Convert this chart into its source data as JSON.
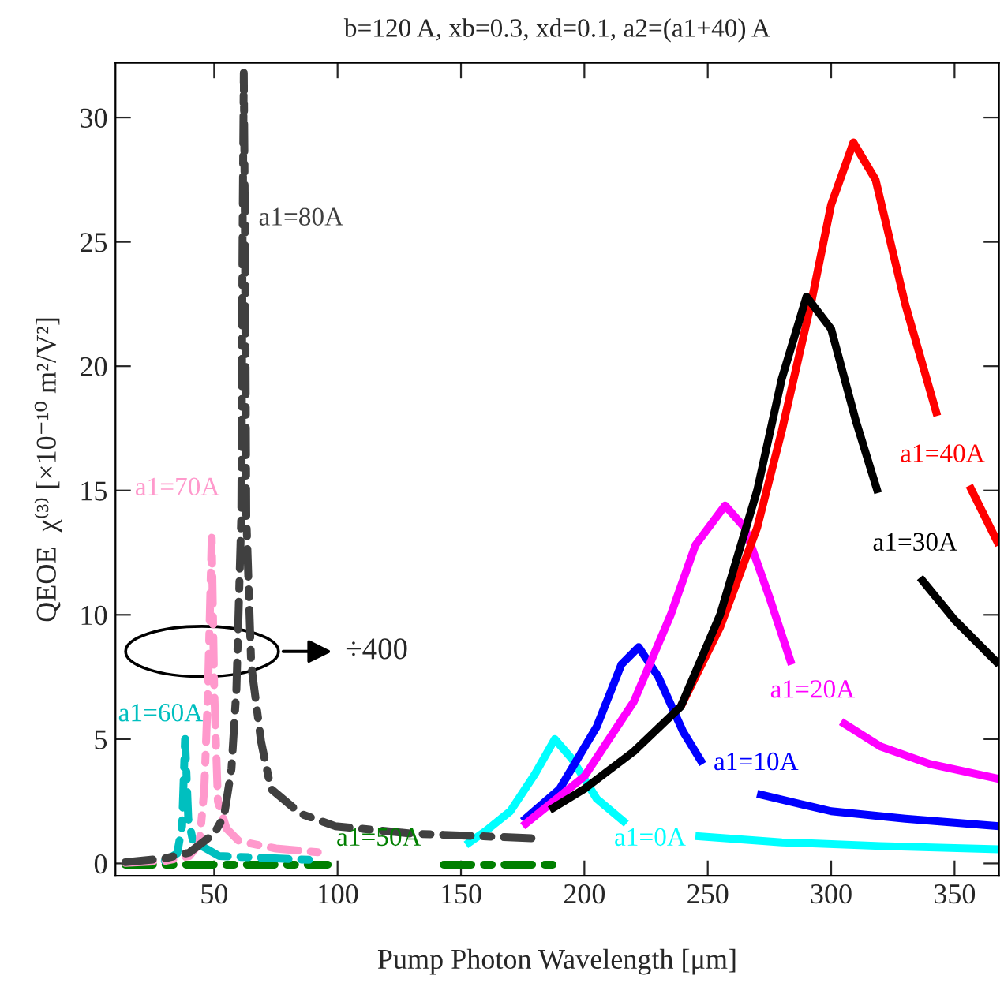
{
  "chart_data": {
    "type": "line",
    "title": "b=120 A, xb=0.3, xd=0.1, a2=(a1+40) A",
    "xlabel": "Pump Photon Wavelength [μm]",
    "ylabel": "QEOE  χ⁽³⁾ [×10⁻¹⁰ m²/V²]",
    "xlim": [
      10,
      368
    ],
    "ylim": [
      -0.5,
      32.2
    ],
    "xticks": [
      50,
      100,
      150,
      200,
      250,
      300,
      350
    ],
    "yticks": [
      0,
      5,
      10,
      15,
      20,
      25,
      30
    ],
    "grid": false,
    "legend": false,
    "series": [
      {
        "name": "a1=0A",
        "color": "#00ffff",
        "line_style": "solid",
        "x": [
          152,
          160,
          170,
          180,
          188,
          195,
          205,
          217,
          231,
          245,
          280,
          320,
          368
        ],
        "values": [
          0.75,
          1.3,
          2.1,
          3.6,
          5.0,
          4.2,
          2.6,
          1.6,
          null,
          1.1,
          0.85,
          0.7,
          0.57
        ]
      },
      {
        "name": "a1=10A",
        "color": "#0000ff",
        "line_style": "solid",
        "x": [
          175,
          190,
          205,
          215,
          222,
          230,
          240,
          248,
          259,
          270,
          300,
          330,
          368
        ],
        "values": [
          1.7,
          3.0,
          5.5,
          8.0,
          8.7,
          7.5,
          5.3,
          4.0,
          null,
          2.8,
          2.1,
          1.8,
          1.5
        ]
      },
      {
        "name": "a1=20A",
        "color": "#ff00ff",
        "line_style": "solid",
        "x": [
          175,
          200,
          220,
          235,
          245,
          257,
          265,
          275,
          284,
          294,
          304,
          320,
          340,
          368
        ],
        "values": [
          1.5,
          3.5,
          6.5,
          10,
          12.8,
          14.4,
          13.5,
          10.7,
          8.0,
          null,
          5.7,
          4.7,
          4.0,
          3.4
        ]
      },
      {
        "name": "a1=40A",
        "color": "#ff0000",
        "line_style": "solid",
        "x": [
          239,
          255,
          270,
          280,
          292,
          300,
          309,
          318,
          330,
          343,
          350,
          356,
          368
        ],
        "values": [
          6.3,
          9.5,
          13.5,
          17.4,
          22.6,
          26.5,
          29.0,
          27.5,
          22.5,
          18.0,
          null,
          15.2,
          12.8
        ]
      },
      {
        "name": "a1=30A",
        "color": "#000000",
        "line_style": "solid",
        "x": [
          186,
          200,
          220,
          239,
          255,
          270,
          280,
          290,
          300,
          310,
          319,
          327,
          336,
          350,
          368
        ],
        "values": [
          2.15,
          3.0,
          4.5,
          6.3,
          10,
          15,
          19.5,
          22.8,
          21.5,
          17.8,
          14.9,
          null,
          11.5,
          9.8,
          8.0
        ]
      },
      {
        "name": "a1=50A",
        "color": "#007f00",
        "line_style": "dashed",
        "x": [
          14,
          55,
          96,
          120,
          143,
          188
        ],
        "values": [
          -0.05,
          -0.05,
          -0.05,
          null,
          -0.05,
          -0.05
        ]
      },
      {
        "name": "a1=60A",
        "color": "#00bfbf",
        "line_style": "dashed",
        "x": [
          30,
          35,
          37,
          38.2,
          39.5,
          41.4,
          52,
          92
        ],
        "values": [
          0.1,
          0.4,
          1.5,
          5.0,
          1.8,
          0.9,
          0.3,
          0.13
        ]
      },
      {
        "name": "a1=70A",
        "color": "#ff99cc",
        "line_style": "dashed",
        "x": [
          14,
          30,
          40,
          44,
          46,
          47.5,
          49,
          50,
          51.5,
          55,
          60,
          75,
          92
        ],
        "values": [
          0.02,
          0.1,
          0.3,
          0.8,
          3,
          7,
          13.1,
          7,
          2.5,
          1.4,
          0.9,
          0.6,
          0.45
        ]
      },
      {
        "name": "a1=80A",
        "color": "#404040",
        "line_style": "dashed",
        "x": [
          14,
          30,
          40,
          50,
          54,
          57,
          59,
          61,
          61.5,
          62,
          62.5,
          63,
          65,
          69,
          73,
          85,
          99,
          130,
          162,
          181
        ],
        "values": [
          0.05,
          0.2,
          0.44,
          1.2,
          1.9,
          3.8,
          7,
          14,
          25,
          31.8,
          25,
          14,
          8,
          4.9,
          3.0,
          2.0,
          1.5,
          1.2,
          1.08,
          1.0
        ]
      }
    ],
    "annotations": [
      "÷400"
    ]
  }
}
